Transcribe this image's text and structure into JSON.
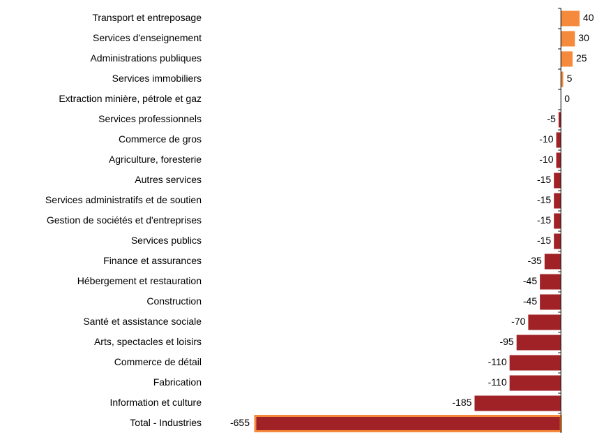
{
  "chart_data": {
    "type": "hbar",
    "categories": [
      "Transport et entreposage",
      "Services d'enseignement",
      "Administrations publiques",
      "Services immobiliers",
      "Extraction minière, pétrole et gaz",
      "Services professionnels",
      "Commerce de gros",
      "Agriculture, foresterie",
      "Autres services",
      "Services administratifs et de soutien",
      "Gestion de sociétés et d'entreprises",
      "Services publics",
      "Finance et assurances",
      "Hébergement et restauration",
      "Construction",
      "Santé et assistance sociale",
      "Arts, spectacles et loisirs",
      "Commerce de détail",
      "Fabrication",
      "Information et culture",
      "Total - Industries"
    ],
    "values": [
      40,
      30,
      25,
      5,
      0,
      -5,
      -10,
      -10,
      -15,
      -15,
      -15,
      -15,
      -35,
      -45,
      -45,
      -70,
      -95,
      -110,
      -110,
      -185,
      -655
    ],
    "color_positive": "#f58a3c",
    "color_negative": "#a02226",
    "highlight_index": 20,
    "highlight_color": "#f58a3c",
    "xlim": [
      -655,
      40
    ]
  }
}
